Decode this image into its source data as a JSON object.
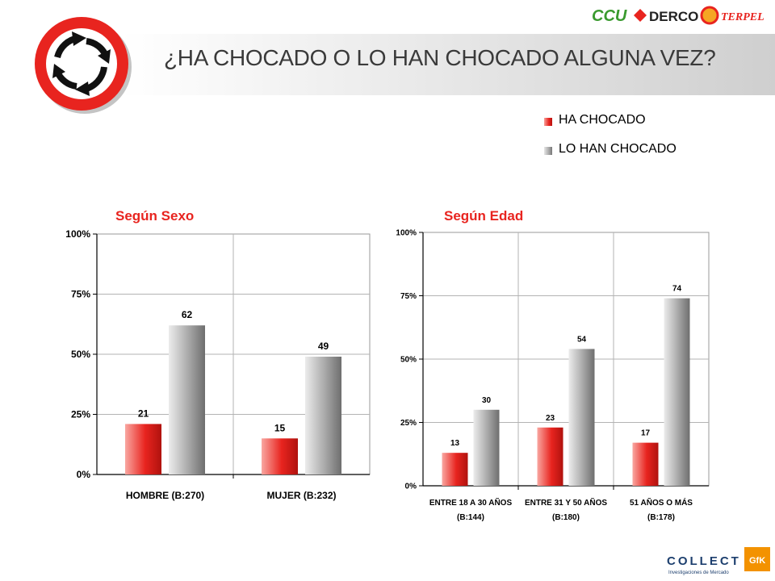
{
  "page": {
    "title": "¿HA CHOCADO O LO HAN CHOCADO ALGUNA VEZ?",
    "brands": [
      "CCU",
      "DERCO",
      "TERPEL"
    ],
    "footer_logo": "COLLECT",
    "footer_logo_sub": "Investigaciones de Mercado",
    "footer_logo_badge": "GfK",
    "sign_icon": "roundabout-sign-icon"
  },
  "colors": {
    "ha_chocado": "#e8241f",
    "lo_han_chocado": "#a8a8a8",
    "heading": "#e8241f"
  },
  "legend": [
    {
      "label": "HA CHOCADO",
      "color": "#e8241f"
    },
    {
      "label": "LO HAN CHOCADO",
      "color": "#a8a8a8"
    }
  ],
  "chart_data": [
    {
      "type": "bar",
      "title": "Según Sexo",
      "categories": [
        [
          "HOMBRE (B:270)"
        ],
        [
          "MUJER (B:232)"
        ]
      ],
      "series": [
        {
          "name": "HA CHOCADO",
          "values": [
            21,
            15
          ]
        },
        {
          "name": "LO HAN CHOCADO",
          "values": [
            62,
            49
          ]
        }
      ],
      "yticks": [
        "0%",
        "25%",
        "50%",
        "75%",
        "100%"
      ],
      "ylim": [
        0,
        100
      ],
      "grid": true
    },
    {
      "type": "bar",
      "title": "Según Edad",
      "categories": [
        [
          "ENTRE 18 A 30 AÑOS",
          "(B:144)"
        ],
        [
          "ENTRE 31 Y 50 AÑOS",
          "(B:180)"
        ],
        [
          "51 AÑOS O MÁS",
          "(B:178)"
        ]
      ],
      "series": [
        {
          "name": "HA CHOCADO",
          "values": [
            13,
            23,
            17
          ]
        },
        {
          "name": "LO HAN CHOCADO",
          "values": [
            30,
            54,
            74
          ]
        }
      ],
      "yticks": [
        "0%",
        "25%",
        "50%",
        "75%",
        "100%"
      ],
      "ylim": [
        0,
        100
      ],
      "grid": true
    }
  ]
}
